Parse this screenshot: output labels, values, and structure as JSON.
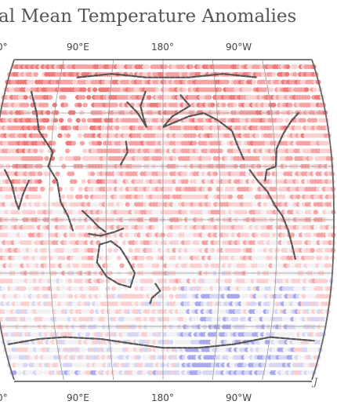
{
  "map": {
    "title": "al Mean Temperature Anomalies",
    "top_labels": [
      "0°",
      "90°E",
      "180°",
      "90°W"
    ],
    "bottom_labels": [
      "0°",
      "90°E",
      "180°",
      "90°W"
    ],
    "corner_text": "J",
    "projection": "Robinson",
    "center_longitude": "180°",
    "anomaly_colors": {
      "warm_strong": "#f07a7a",
      "warm_mid": "#f7a3a3",
      "warm_light": "#fcd0d0",
      "neutral": "#f3f1f4",
      "cool_light": "#d6d6f6",
      "cool_mid": "#a9a9ee"
    },
    "grid_line_color": "#999999",
    "coastline_color": "#555555"
  }
}
